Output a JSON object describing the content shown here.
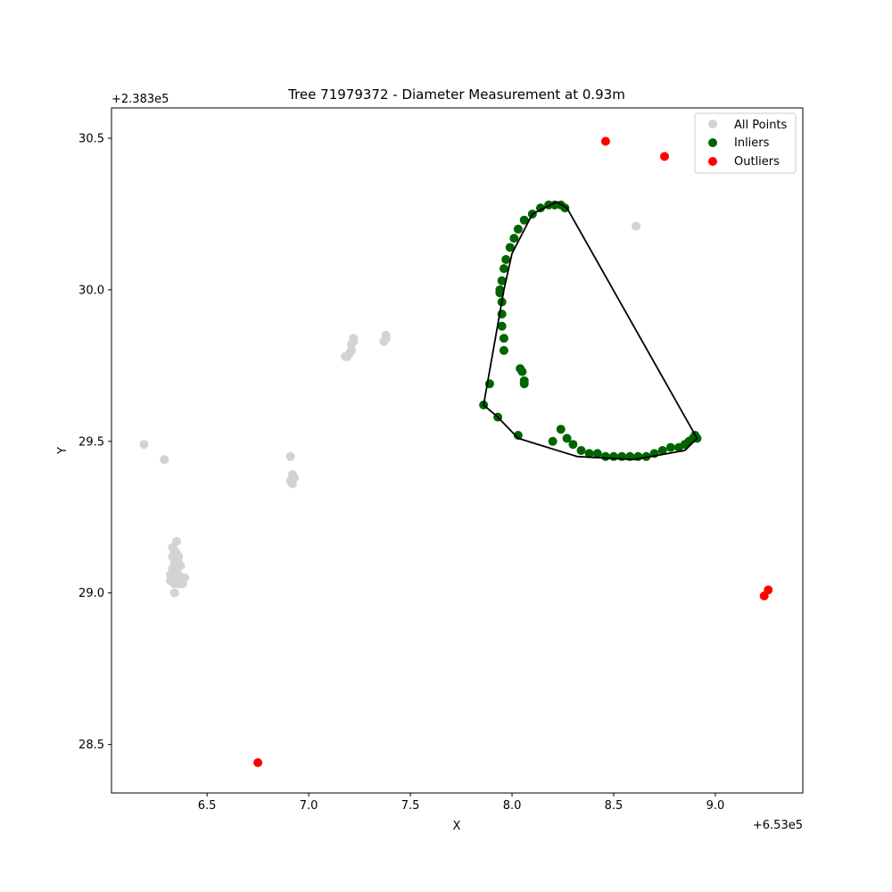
{
  "chart_data": {
    "type": "scatter",
    "title": "Tree 71979372 - Diameter Measurement at 0.93m",
    "xlabel": "X",
    "ylabel": "Y",
    "x_offset_label": "+6.53e5",
    "y_offset_label": "+2.383e5",
    "xlim": [
      6.03,
      9.43
    ],
    "ylim": [
      28.34,
      30.6
    ],
    "x_ticks": [
      6.5,
      7.0,
      7.5,
      8.0,
      8.5,
      9.0
    ],
    "x_tick_labels": [
      "6.5",
      "7.0",
      "7.5",
      "8.0",
      "8.5",
      "9.0"
    ],
    "y_ticks": [
      28.5,
      29.0,
      29.5,
      30.0,
      30.5
    ],
    "y_tick_labels": [
      "28.5",
      "29.0",
      "29.5",
      "30.0",
      "30.5"
    ],
    "legend_position": "top-right",
    "series": [
      {
        "name": "All Points",
        "color": "#d3d3d3",
        "points": [
          [
            6.19,
            29.49
          ],
          [
            6.29,
            29.44
          ],
          [
            6.34,
            29.0
          ],
          [
            6.33,
            29.15
          ],
          [
            6.34,
            29.14
          ],
          [
            6.35,
            29.17
          ],
          [
            6.33,
            29.12
          ],
          [
            6.35,
            29.11
          ],
          [
            6.34,
            29.1
          ],
          [
            6.36,
            29.1
          ],
          [
            6.33,
            29.08
          ],
          [
            6.35,
            29.08
          ],
          [
            6.37,
            29.09
          ],
          [
            6.34,
            29.06
          ],
          [
            6.36,
            29.06
          ],
          [
            6.33,
            29.05
          ],
          [
            6.35,
            29.04
          ],
          [
            6.37,
            29.05
          ],
          [
            6.39,
            29.05
          ],
          [
            6.36,
            29.03
          ],
          [
            6.34,
            29.03
          ],
          [
            6.38,
            29.03
          ],
          [
            6.32,
            29.04
          ],
          [
            6.35,
            29.13
          ],
          [
            6.36,
            29.12
          ],
          [
            6.32,
            29.06
          ],
          [
            6.91,
            29.45
          ],
          [
            6.91,
            29.37
          ],
          [
            6.92,
            29.39
          ],
          [
            6.93,
            29.38
          ],
          [
            6.92,
            29.36
          ],
          [
            7.18,
            29.78
          ],
          [
            7.19,
            29.78
          ],
          [
            7.2,
            29.79
          ],
          [
            7.21,
            29.8
          ],
          [
            7.21,
            29.82
          ],
          [
            7.22,
            29.83
          ],
          [
            7.22,
            29.84
          ],
          [
            7.37,
            29.83
          ],
          [
            7.38,
            29.84
          ],
          [
            7.38,
            29.85
          ],
          [
            8.61,
            30.21
          ]
        ]
      },
      {
        "name": "Inliers",
        "color": "#006400",
        "points": [
          [
            7.86,
            29.62
          ],
          [
            7.93,
            29.58
          ],
          [
            8.03,
            29.52
          ],
          [
            7.89,
            29.69
          ],
          [
            8.04,
            29.74
          ],
          [
            8.06,
            29.7
          ],
          [
            8.06,
            29.69
          ],
          [
            8.05,
            29.73
          ],
          [
            7.96,
            29.8
          ],
          [
            7.96,
            29.84
          ],
          [
            7.95,
            29.88
          ],
          [
            7.95,
            29.92
          ],
          [
            7.95,
            29.96
          ],
          [
            7.94,
            29.99
          ],
          [
            7.94,
            30.0
          ],
          [
            7.95,
            30.03
          ],
          [
            7.96,
            30.07
          ],
          [
            7.97,
            30.1
          ],
          [
            7.99,
            30.14
          ],
          [
            8.01,
            30.17
          ],
          [
            8.03,
            30.2
          ],
          [
            8.06,
            30.23
          ],
          [
            8.1,
            30.25
          ],
          [
            8.14,
            30.27
          ],
          [
            8.18,
            30.28
          ],
          [
            8.21,
            30.28
          ],
          [
            8.24,
            30.28
          ],
          [
            8.26,
            30.27
          ],
          [
            8.2,
            29.5
          ],
          [
            8.24,
            29.54
          ],
          [
            8.27,
            29.51
          ],
          [
            8.3,
            29.49
          ],
          [
            8.34,
            29.47
          ],
          [
            8.38,
            29.46
          ],
          [
            8.42,
            29.46
          ],
          [
            8.46,
            29.45
          ],
          [
            8.5,
            29.45
          ],
          [
            8.54,
            29.45
          ],
          [
            8.58,
            29.45
          ],
          [
            8.62,
            29.45
          ],
          [
            8.66,
            29.45
          ],
          [
            8.7,
            29.46
          ],
          [
            8.74,
            29.47
          ],
          [
            8.78,
            29.48
          ],
          [
            8.82,
            29.48
          ],
          [
            8.85,
            29.49
          ],
          [
            8.87,
            29.5
          ],
          [
            8.89,
            29.51
          ],
          [
            8.9,
            29.52
          ],
          [
            8.91,
            29.51
          ]
        ]
      },
      {
        "name": "Outliers",
        "color": "#ff0000",
        "points": [
          [
            8.46,
            30.49
          ],
          [
            8.75,
            30.44
          ],
          [
            9.26,
            29.01
          ],
          [
            9.24,
            28.99
          ],
          [
            6.75,
            28.44
          ]
        ]
      }
    ],
    "hull": {
      "color": "#000000",
      "points": [
        [
          7.86,
          29.62
        ],
        [
          7.93,
          29.58
        ],
        [
          8.03,
          29.51
        ],
        [
          8.32,
          29.45
        ],
        [
          8.6,
          29.44
        ],
        [
          8.85,
          29.47
        ],
        [
          8.91,
          29.51
        ],
        [
          8.27,
          30.27
        ],
        [
          8.22,
          30.29
        ],
        [
          8.1,
          30.25
        ],
        [
          8.0,
          30.12
        ],
        [
          7.96,
          30.0
        ],
        [
          7.86,
          29.62
        ]
      ]
    }
  }
}
